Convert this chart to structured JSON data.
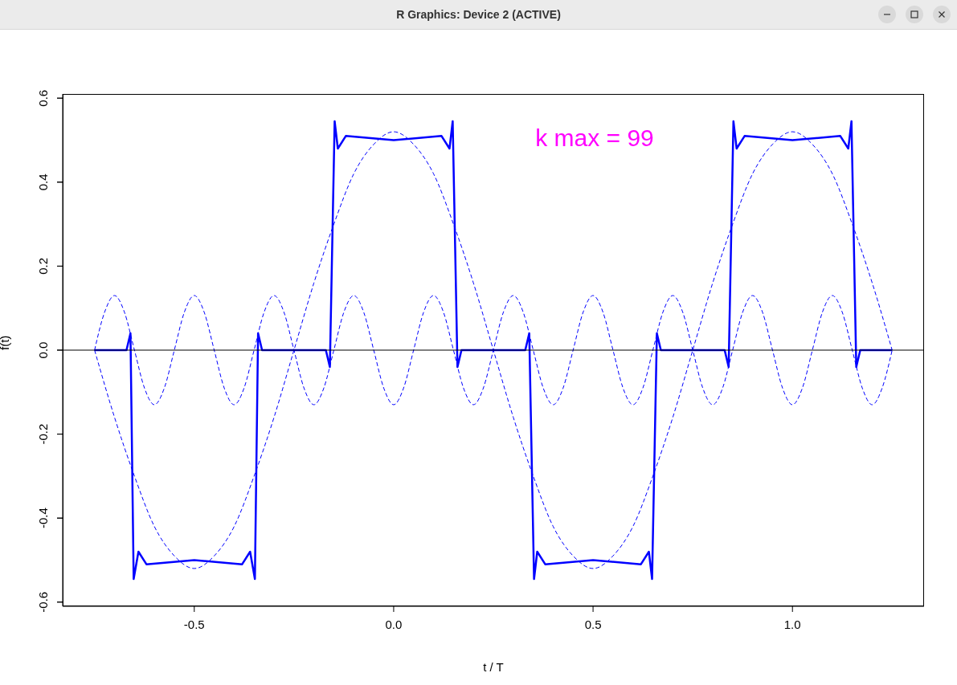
{
  "chart_data": {
    "type": "line",
    "title": "R Graphics: Device 2 (ACTIVE)",
    "xlabel": "t / T",
    "ylabel": "f(t)",
    "annotations": [
      "k max = 99"
    ],
    "xlim": [
      -0.83,
      1.33
    ],
    "ylim": [
      -0.61,
      0.61
    ],
    "xticks": [
      -0.5,
      {
        "value": 0,
        "label": "0.0"
      },
      0.5,
      {
        "value": 1,
        "label": "1.0"
      }
    ],
    "yticks": [
      -0.6,
      -0.4,
      -0.2,
      {
        "value": 0,
        "label": "0.0"
      },
      0.2,
      0.4,
      0.6
    ],
    "marker": "none",
    "ref_lines": [
      {
        "axis": "y",
        "value": 0,
        "color": "#000000"
      }
    ],
    "series": [
      {
        "color": "#0000ff",
        "line_style": "dashed",
        "x": [
          -0.75,
          -0.7,
          -0.65,
          -0.6,
          -0.55,
          -0.5,
          -0.45,
          -0.4,
          -0.35,
          -0.3,
          -0.25,
          -0.2,
          -0.15,
          -0.1,
          -0.05,
          0,
          0.05,
          0.1,
          0.15,
          0.2,
          0.25,
          0.3,
          0.35,
          0.4,
          0.45,
          0.5,
          0.55,
          0.6,
          0.65,
          0.7,
          0.75,
          0.8,
          0.85,
          0.9,
          0.95,
          1,
          1.05,
          1.1,
          1.15,
          1.2,
          1.25
        ],
        "values": [
          0,
          -0.16,
          -0.3,
          -0.42,
          -0.49,
          -0.52,
          -0.49,
          -0.42,
          -0.3,
          -0.16,
          0,
          0.16,
          0.3,
          0.42,
          0.49,
          0.52,
          0.49,
          0.42,
          0.3,
          0.16,
          0,
          -0.16,
          -0.3,
          -0.42,
          -0.49,
          -0.52,
          -0.49,
          -0.42,
          -0.3,
          -0.16,
          0,
          0.16,
          0.3,
          0.42,
          0.49,
          0.52,
          0.49,
          0.42,
          0.3,
          0.16,
          0
        ]
      },
      {
        "color": "#0000ff",
        "line_style": "dashed",
        "x": [
          -0.75,
          -0.725,
          -0.7,
          -0.675,
          -0.65,
          -0.625,
          -0.6,
          -0.575,
          -0.55,
          -0.525,
          -0.5,
          -0.475,
          -0.45,
          -0.425,
          -0.4,
          -0.375,
          -0.35,
          -0.325,
          -0.3,
          -0.275,
          -0.25,
          -0.225,
          -0.2,
          -0.175,
          -0.15,
          -0.125,
          -0.1,
          -0.075,
          -0.05,
          -0.025,
          0,
          0.025,
          0.05,
          0.075,
          0.1,
          0.125,
          0.15,
          0.175,
          0.2,
          0.225,
          0.25,
          0.275,
          0.3,
          0.325,
          0.35,
          0.375,
          0.4,
          0.425,
          0.45,
          0.475,
          0.5,
          0.525,
          0.55,
          0.575,
          0.6,
          0.625,
          0.65,
          0.675,
          0.7,
          0.725,
          0.75,
          0.775,
          0.8,
          0.825,
          0.85,
          0.875,
          0.9,
          0.925,
          0.95,
          0.975,
          1,
          1.025,
          1.05,
          1.075,
          1.1,
          1.125,
          1.15,
          1.175,
          1.2,
          1.225,
          1.25
        ],
        "values": [
          0,
          0.09,
          0.13,
          0.09,
          0,
          -0.09,
          -0.13,
          -0.09,
          0,
          0.09,
          0.13,
          0.09,
          0,
          -0.09,
          -0.13,
          -0.09,
          0,
          0.09,
          0.13,
          0.09,
          0,
          -0.09,
          -0.13,
          -0.09,
          0,
          0.09,
          0.13,
          0.09,
          0,
          -0.09,
          -0.13,
          -0.09,
          0,
          0.09,
          0.13,
          0.09,
          0,
          -0.09,
          -0.13,
          -0.09,
          0,
          0.09,
          0.13,
          0.09,
          0,
          -0.09,
          -0.13,
          -0.09,
          0,
          0.09,
          0.13,
          0.09,
          0,
          -0.09,
          -0.13,
          -0.09,
          0,
          0.09,
          0.13,
          0.09,
          0,
          -0.09,
          -0.13,
          -0.09,
          0,
          0.09,
          0.13,
          0.09,
          0,
          -0.09,
          -0.13,
          -0.09,
          0,
          0.09,
          0.13,
          0.09,
          0,
          -0.09,
          -0.13,
          -0.09,
          0
        ]
      },
      {
        "color": "#0000ff",
        "line_style": "solid",
        "x": [
          -0.75,
          -0.67,
          -0.66,
          -0.652,
          -0.64,
          -0.62,
          -0.5,
          -0.38,
          -0.36,
          -0.348,
          -0.34,
          -0.33,
          -0.17,
          -0.16,
          -0.148,
          -0.14,
          -0.12,
          0,
          0.12,
          0.14,
          0.148,
          0.16,
          0.17,
          0.33,
          0.34,
          0.352,
          0.36,
          0.38,
          0.5,
          0.62,
          0.64,
          0.648,
          0.66,
          0.67,
          0.83,
          0.84,
          0.852,
          0.86,
          0.88,
          1,
          1.12,
          1.14,
          1.148,
          1.16,
          1.17,
          1.25
        ],
        "values": [
          0,
          0,
          0.04,
          -0.545,
          -0.48,
          -0.51,
          -0.5,
          -0.51,
          -0.48,
          -0.545,
          0.04,
          0,
          0,
          -0.04,
          0.545,
          0.48,
          0.51,
          0.5,
          0.51,
          0.48,
          0.545,
          -0.04,
          0,
          0,
          0.04,
          -0.545,
          -0.48,
          -0.51,
          -0.5,
          -0.51,
          -0.48,
          -0.545,
          0.04,
          0,
          0,
          -0.04,
          0.545,
          0.48,
          0.51,
          0.5,
          0.51,
          0.48,
          0.545,
          -0.04,
          0,
          0
        ]
      }
    ]
  }
}
